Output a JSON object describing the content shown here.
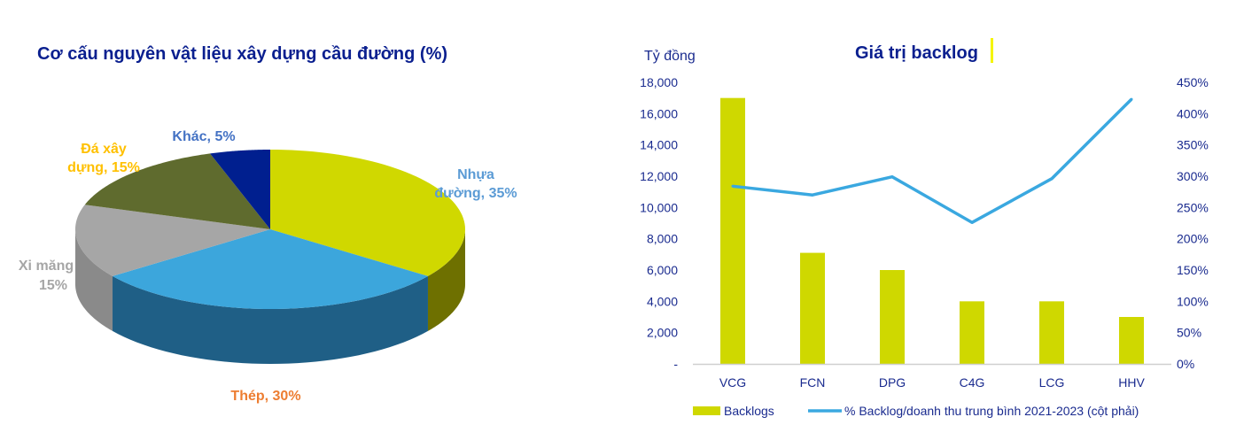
{
  "chart_data": [
    {
      "type": "pie",
      "style": "3d",
      "title": "Cơ cấu nguyên vật liệu xây dựng cầu đường (%)",
      "slices": [
        {
          "label_lines": [
            "Nhựa",
            "đường, 35%"
          ],
          "name": "Nhựa đường",
          "value": 35,
          "color": "#d0d800",
          "side": "#6e7000",
          "label_color": "#5b9bd5"
        },
        {
          "label_lines": [
            "Thép, 30%"
          ],
          "name": "Thép",
          "value": 30,
          "color": "#3ca6dc",
          "side": "#1f5f86",
          "label_color": "#ed7d31"
        },
        {
          "label_lines": [
            "Xi măng",
            "15%"
          ],
          "name": "Xi măng",
          "value": 15,
          "color": "#a6a6a6",
          "side": "#8a8a8a",
          "label_color": "#a6a6a6"
        },
        {
          "label_lines": [
            "Đá xây",
            "dựng, 15%"
          ],
          "name": "Đá xây dựng",
          "value": 15,
          "color": "#5f6b2e",
          "side": "#444d20",
          "label_color": "#ffc000"
        },
        {
          "label_lines": [
            "Khác, 5%"
          ],
          "name": "Khác",
          "value": 5,
          "color": "#001f8f",
          "side": "#001060",
          "label_color": "#4472c4"
        }
      ]
    },
    {
      "type": "bar+line",
      "title": "Giá trị backlog",
      "ylabel_left": "Tỷ đồng",
      "categories": [
        "VCG",
        "FCN",
        "DPG",
        "C4G",
        "LCG",
        "HHV"
      ],
      "ylim_left": [
        0,
        18000
      ],
      "yticks_left": [
        "-",
        "2,000",
        "4,000",
        "6,000",
        "8,000",
        "10,000",
        "12,000",
        "14,000",
        "16,000",
        "18,000"
      ],
      "ylim_right": [
        0,
        450
      ],
      "yticks_right": [
        "0%",
        "50%",
        "100%",
        "150%",
        "200%",
        "250%",
        "300%",
        "350%",
        "400%",
        "450%"
      ],
      "grid": false,
      "legend_position": "bottom",
      "series": [
        {
          "name": "Backlogs",
          "type": "bar",
          "axis": "left",
          "color": "#cfd800",
          "values": [
            17000,
            7100,
            6000,
            4000,
            4000,
            3000
          ]
        },
        {
          "name": "% Backlog/doanh thu trung bình 2021-2023 (cột phải)",
          "type": "line",
          "axis": "right",
          "unit": "%",
          "color": "#3aa8e0",
          "values": [
            284,
            270,
            299,
            226,
            296,
            423
          ]
        }
      ]
    }
  ]
}
